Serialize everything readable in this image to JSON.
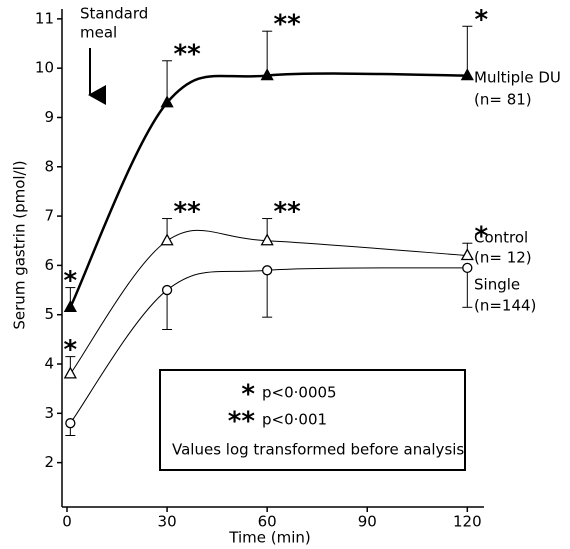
{
  "chart_data": {
    "type": "line",
    "x_label": "Time (min)",
    "y_label": "Serum gastrin (pmol/l)",
    "xlim": [
      -1.5,
      125
    ],
    "xticks": [
      0,
      30,
      60,
      90,
      120
    ],
    "ylim": [
      1.1,
      11.2
    ],
    "yticks": [
      2,
      3,
      4,
      5,
      6,
      7,
      8,
      9,
      10,
      11
    ],
    "x": [
      1,
      30,
      60,
      120
    ],
    "series": [
      {
        "name": "Multiple DU",
        "n_label": "(n= 81)",
        "color": "#000000",
        "marker": "triangle-filled",
        "line_width": 2.5,
        "values": [
          5.15,
          9.3,
          9.85,
          9.85
        ],
        "errors": [
          0.4,
          0.85,
          0.9,
          1.0
        ],
        "error_dir": "up",
        "significance": [
          "*",
          "**",
          "**",
          "*"
        ]
      },
      {
        "name": "Control",
        "n_label": "(n= 12)",
        "color": "#000000",
        "marker": "triangle-open",
        "line_width": 1,
        "values": [
          3.8,
          6.5,
          6.5,
          6.2
        ],
        "errors": [
          0.35,
          0.45,
          0.45,
          0.25
        ],
        "error_dir": "up",
        "significance": [
          "*",
          "**",
          "**",
          "*"
        ]
      },
      {
        "name": "Single",
        "n_label": "(n=144)",
        "color": "#000000",
        "marker": "circle-open",
        "line_width": 1,
        "values": [
          2.8,
          5.5,
          5.9,
          5.95
        ],
        "errors": [
          0.25,
          0.8,
          0.95,
          0.8
        ],
        "error_dir": "down"
      }
    ],
    "annotation_lines": [
      "Standard",
      "meal"
    ],
    "key": [
      {
        "symbol": "*",
        "text": "p<0·0005"
      },
      {
        "symbol": "**",
        "text": "p<0·001"
      }
    ],
    "note": "Values log transformed before analysis"
  }
}
